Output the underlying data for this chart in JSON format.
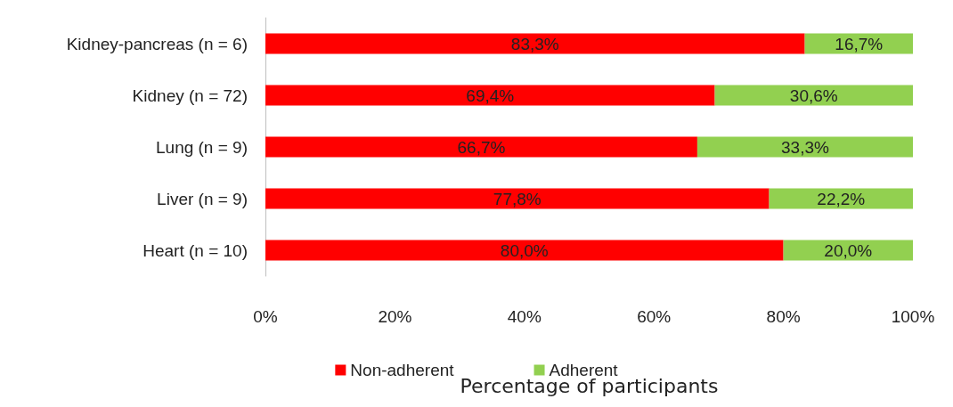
{
  "chart_data": {
    "type": "bar",
    "orientation": "horizontal",
    "stacked": true,
    "xlabel": "Percentage of participants",
    "categories": [
      "Kidney-pancreas (n = 6)",
      "Kidney (n = 72)",
      "Lung (n = 9)",
      "Liver (n = 9)",
      "Heart (n = 10)"
    ],
    "series": [
      {
        "name": "Non-adherent",
        "color": "#ff0000",
        "values": [
          83.3,
          69.4,
          66.7,
          77.8,
          80.0
        ],
        "value_labels": [
          "83,3%",
          "69,4%",
          "66,7%",
          "77,8%",
          "80,0%"
        ]
      },
      {
        "name": "Adherent",
        "color": "#92d050",
        "values": [
          16.7,
          30.6,
          33.3,
          22.2,
          20.0
        ],
        "value_labels": [
          "16,7%",
          "30,6%",
          "33,3%",
          "22,2%",
          "20,0%"
        ]
      }
    ],
    "xlim": [
      0,
      100
    ],
    "xticks": [
      {
        "value": 0,
        "label": "0%"
      },
      {
        "value": 20,
        "label": "20%"
      },
      {
        "value": 40,
        "label": "40%"
      },
      {
        "value": 60,
        "label": "60%"
      },
      {
        "value": 80,
        "label": "80%"
      },
      {
        "value": 100,
        "label": "100%"
      }
    ],
    "grid": false,
    "legend": "bottom"
  }
}
